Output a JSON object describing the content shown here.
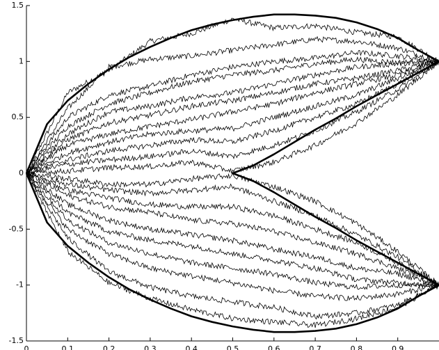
{
  "chart_data": {
    "type": "line",
    "title": "",
    "xlabel": "",
    "ylabel": "",
    "xlim": [
      0,
      1
    ],
    "ylim": [
      -1.5,
      1.5
    ],
    "xticks": [
      0,
      0.1,
      0.2,
      0.3,
      0.4,
      0.5,
      0.6,
      0.7,
      0.8,
      0.9
    ],
    "xtick_labels": [
      "0",
      "0.1",
      "0.2",
      "0.3",
      "0.4",
      "0.5",
      "0.6",
      "0.7",
      "0.8",
      "0.9"
    ],
    "yticks": [
      -1.5,
      -1,
      -0.5,
      0,
      0.5,
      1,
      1.5
    ],
    "ytick_labels": [
      "-1.5",
      "-1",
      "-0.5",
      "0",
      "0.5",
      "1",
      "1.5"
    ],
    "grid": false,
    "boundary": {
      "x": [
        0,
        0.05,
        0.1,
        0.15,
        0.2,
        0.25,
        0.3,
        0.35,
        0.4,
        0.45,
        0.5,
        0.55,
        0.6,
        0.65,
        0.7,
        0.75,
        0.8,
        0.85,
        0.9,
        0.95,
        1.0,
        0.95,
        0.9,
        0.85,
        0.8,
        0.75,
        0.7,
        0.65,
        0.6,
        0.55,
        0.5,
        0.55,
        0.6,
        0.65,
        0.7,
        0.75,
        0.8,
        0.85,
        0.9,
        0.95,
        1.0,
        0.95,
        0.9,
        0.85,
        0.8,
        0.75,
        0.7,
        0.65,
        0.6,
        0.55,
        0.5,
        0.45,
        0.4,
        0.35,
        0.3,
        0.25,
        0.2,
        0.15,
        0.1,
        0.05,
        0
      ],
      "y": [
        0,
        0.44,
        0.65,
        0.8,
        0.93,
        1.04,
        1.13,
        1.21,
        1.28,
        1.33,
        1.37,
        1.4,
        1.42,
        1.42,
        1.41,
        1.39,
        1.35,
        1.29,
        1.21,
        1.1,
        1.0,
        0.9,
        0.8,
        0.7,
        0.6,
        0.49,
        0.39,
        0.28,
        0.17,
        0.07,
        0,
        -0.07,
        -0.17,
        -0.28,
        -0.39,
        -0.49,
        -0.6,
        -0.7,
        -0.8,
        -0.9,
        -1.0,
        -1.1,
        -1.21,
        -1.29,
        -1.35,
        -1.39,
        -1.41,
        -1.42,
        -1.42,
        -1.4,
        -1.37,
        -1.33,
        -1.28,
        -1.21,
        -1.13,
        -1.04,
        -0.93,
        -0.8,
        -0.65,
        -0.44,
        0
      ]
    },
    "series": [
      {
        "x": [
          0,
          0.1,
          0.2,
          0.3,
          0.4,
          0.5,
          0.6,
          0.7,
          0.8,
          0.9,
          1.0
        ],
        "y": [
          0,
          0.72,
          0.92,
          1.18,
          1.25,
          1.38,
          1.3,
          1.32,
          1.26,
          1.22,
          1.0
        ]
      },
      {
        "x": [
          0,
          0.1,
          0.2,
          0.3,
          0.4,
          0.5,
          0.6,
          0.7,
          0.8,
          0.9,
          1.0
        ],
        "y": [
          0,
          0.58,
          0.95,
          1.02,
          1.05,
          1.1,
          1.15,
          1.2,
          1.18,
          1.12,
          1.0
        ]
      },
      {
        "x": [
          0,
          0.1,
          0.2,
          0.3,
          0.4,
          0.5,
          0.6,
          0.7,
          0.8,
          0.9,
          1.0
        ],
        "y": [
          0,
          0.5,
          0.7,
          0.78,
          0.88,
          0.95,
          1.0,
          1.03,
          1.08,
          1.05,
          1.0
        ]
      },
      {
        "x": [
          0,
          0.1,
          0.2,
          0.3,
          0.4,
          0.5,
          0.6,
          0.7,
          0.8,
          0.9,
          1.0
        ],
        "y": [
          0,
          0.42,
          0.62,
          0.72,
          0.82,
          0.88,
          0.92,
          0.98,
          1.02,
          0.99,
          1.0
        ]
      },
      {
        "x": [
          0,
          0.1,
          0.2,
          0.3,
          0.4,
          0.5,
          0.6,
          0.7,
          0.8,
          0.9,
          1.0
        ],
        "y": [
          0,
          0.35,
          0.55,
          0.6,
          0.68,
          0.72,
          0.8,
          0.88,
          0.95,
          0.98,
          1.0
        ]
      },
      {
        "x": [
          0,
          0.1,
          0.2,
          0.3,
          0.4,
          0.5,
          0.6,
          0.7,
          0.8,
          0.9,
          1.0
        ],
        "y": [
          0,
          0.3,
          0.45,
          0.52,
          0.6,
          0.65,
          0.72,
          0.8,
          0.85,
          0.92,
          1.0
        ]
      },
      {
        "x": [
          0,
          0.1,
          0.2,
          0.3,
          0.4,
          0.5,
          0.6,
          0.7,
          0.8,
          0.9,
          1.0
        ],
        "y": [
          0,
          0.25,
          0.35,
          0.42,
          0.48,
          0.55,
          0.62,
          0.72,
          0.8,
          0.88,
          1.0
        ]
      },
      {
        "x": [
          0,
          0.1,
          0.2,
          0.3,
          0.4,
          0.5,
          0.6,
          0.7,
          0.8,
          0.9,
          1.0
        ],
        "y": [
          0,
          0.18,
          0.28,
          0.35,
          0.38,
          0.4,
          0.5,
          0.6,
          0.7,
          0.85,
          1.0
        ]
      },
      {
        "x": [
          0,
          0.1,
          0.2,
          0.3,
          0.4,
          0.5,
          0.6,
          0.7,
          0.8,
          0.9,
          1.0
        ],
        "y": [
          0,
          0.12,
          0.2,
          0.25,
          0.3,
          0.28,
          0.38,
          0.5,
          0.62,
          0.8,
          1.0
        ]
      },
      {
        "x": [
          0,
          0.1,
          0.2,
          0.3,
          0.4,
          0.5,
          0.6,
          0.7,
          0.8,
          0.9,
          1.0
        ],
        "y": [
          0,
          0.08,
          0.12,
          0.15,
          0.2,
          0.15,
          0.25,
          0.38,
          0.55,
          0.75,
          1.0
        ]
      },
      {
        "x": [
          0,
          0.1,
          0.2,
          0.3,
          0.4,
          0.5,
          0.6,
          0.7,
          0.8,
          0.9,
          1.0
        ],
        "y": [
          0,
          0.02,
          0.05,
          0.06,
          0.1,
          0.02,
          0.1,
          0.25,
          0.45,
          0.7,
          1.0
        ]
      },
      {
        "x": [
          0,
          0.1,
          0.2,
          0.3,
          0.4,
          0.5,
          0.6,
          0.7,
          0.8,
          0.9,
          1.0
        ],
        "y": [
          0,
          -0.05,
          -0.1,
          -0.1,
          -0.05,
          -0.02,
          -0.12,
          -0.25,
          -0.45,
          -0.7,
          -1.0
        ]
      },
      {
        "x": [
          0,
          0.1,
          0.2,
          0.3,
          0.4,
          0.5,
          0.6,
          0.7,
          0.8,
          0.9,
          1.0
        ],
        "y": [
          0,
          -0.1,
          -0.15,
          -0.18,
          -0.15,
          -0.12,
          -0.25,
          -0.38,
          -0.55,
          -0.75,
          -1.0
        ]
      },
      {
        "x": [
          0,
          0.1,
          0.2,
          0.3,
          0.4,
          0.5,
          0.6,
          0.7,
          0.8,
          0.9,
          1.0
        ],
        "y": [
          0,
          -0.15,
          -0.22,
          -0.28,
          -0.3,
          -0.3,
          -0.38,
          -0.5,
          -0.62,
          -0.8,
          -1.0
        ]
      },
      {
        "x": [
          0,
          0.1,
          0.2,
          0.3,
          0.4,
          0.5,
          0.6,
          0.7,
          0.8,
          0.9,
          1.0
        ],
        "y": [
          0,
          -0.2,
          -0.3,
          -0.35,
          -0.42,
          -0.45,
          -0.52,
          -0.62,
          -0.72,
          -0.85,
          -1.0
        ]
      },
      {
        "x": [
          0,
          0.1,
          0.2,
          0.3,
          0.4,
          0.5,
          0.6,
          0.7,
          0.8,
          0.9,
          1.0
        ],
        "y": [
          0,
          -0.28,
          -0.42,
          -0.5,
          -0.55,
          -0.6,
          -0.68,
          -0.75,
          -0.85,
          -0.9,
          -1.0
        ]
      },
      {
        "x": [
          0,
          0.1,
          0.2,
          0.3,
          0.4,
          0.5,
          0.6,
          0.7,
          0.8,
          0.9,
          1.0
        ],
        "y": [
          0,
          -0.35,
          -0.52,
          -0.6,
          -0.65,
          -0.72,
          -0.78,
          -0.85,
          -0.95,
          -0.98,
          -1.0
        ]
      },
      {
        "x": [
          0,
          0.1,
          0.2,
          0.3,
          0.4,
          0.5,
          0.6,
          0.7,
          0.8,
          0.9,
          1.0
        ],
        "y": [
          0,
          -0.42,
          -0.62,
          -0.72,
          -0.8,
          -0.85,
          -0.9,
          -0.98,
          -1.02,
          -1.0,
          -1.0
        ]
      },
      {
        "x": [
          0,
          0.1,
          0.2,
          0.3,
          0.4,
          0.5,
          0.6,
          0.7,
          0.8,
          0.9,
          1.0
        ],
        "y": [
          0,
          -0.5,
          -0.72,
          -0.85,
          -0.92,
          -0.98,
          -1.05,
          -1.1,
          -1.12,
          -1.08,
          -1.0
        ]
      },
      {
        "x": [
          0,
          0.1,
          0.2,
          0.3,
          0.4,
          0.5,
          0.6,
          0.7,
          0.8,
          0.9,
          1.0
        ],
        "y": [
          0,
          -0.58,
          -0.88,
          -1.02,
          -1.1,
          -1.15,
          -1.2,
          -1.28,
          -1.25,
          -1.18,
          -1.0
        ]
      },
      {
        "x": [
          0,
          0.1,
          0.2,
          0.3,
          0.4,
          0.5,
          0.6,
          0.7,
          0.8,
          0.9,
          1.0
        ],
        "y": [
          0,
          -0.7,
          -0.98,
          -1.12,
          -1.22,
          -1.3,
          -1.33,
          -1.36,
          -1.3,
          -1.2,
          -1.0
        ]
      }
    ]
  }
}
